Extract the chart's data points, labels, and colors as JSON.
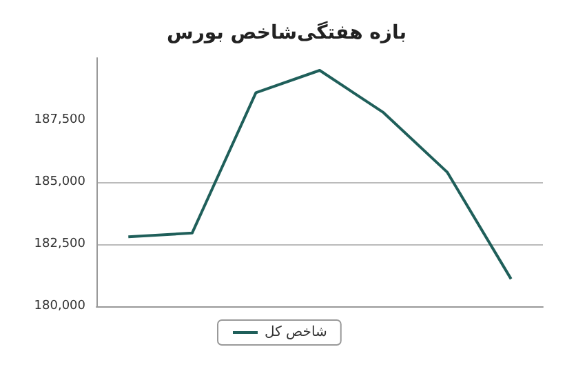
{
  "chart_data": {
    "type": "line",
    "title": "بازه هفتگی‌شاخص بورس",
    "categories": [
      null,
      null,
      null,
      null,
      null,
      null,
      null
    ],
    "series": [
      {
        "name": "شاخص کل",
        "color": "#1f5f5a",
        "values": [
          182800,
          182950,
          188600,
          189500,
          187800,
          185400,
          181100
        ]
      }
    ],
    "ylim": [
      180000,
      190000
    ],
    "yticks": [
      {
        "value": 180000,
        "label": "180,000"
      },
      {
        "value": 182500,
        "label": "182,500"
      },
      {
        "value": 185000,
        "label": "185,000"
      },
      {
        "value": 187500,
        "label": "187,500"
      }
    ],
    "grid": "y",
    "legend": "bottom",
    "marker": "none",
    "line_style": "solid"
  }
}
